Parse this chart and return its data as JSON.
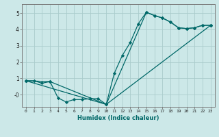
{
  "xlabel": "Humidex (Indice chaleur)",
  "bg_color": "#cce8e8",
  "grid_color": "#aacccc",
  "line_color": "#006868",
  "series": [
    {
      "x": [
        0,
        1,
        2,
        3,
        4,
        5,
        6,
        7,
        8,
        9,
        10,
        11,
        12,
        13,
        14,
        15,
        16,
        17,
        18,
        19,
        20,
        21,
        22,
        23
      ],
      "y": [
        0.85,
        0.85,
        0.7,
        0.8,
        -0.2,
        -0.45,
        -0.3,
        -0.3,
        -0.25,
        -0.25,
        -0.6,
        1.3,
        2.4,
        3.2,
        4.35,
        5.05,
        4.85,
        4.7,
        4.45,
        4.1,
        4.05,
        4.1,
        4.25,
        4.25
      ]
    },
    {
      "x": [
        0,
        3,
        10,
        23
      ],
      "y": [
        0.85,
        0.8,
        -0.6,
        4.25
      ]
    },
    {
      "x": [
        0,
        10,
        15,
        16,
        17,
        18,
        19,
        20,
        21,
        22,
        23
      ],
      "y": [
        0.85,
        -0.6,
        5.05,
        4.85,
        4.7,
        4.45,
        4.1,
        4.05,
        4.1,
        4.25,
        4.25
      ]
    }
  ],
  "xlim": [
    -0.5,
    23.5
  ],
  "ylim": [
    -0.75,
    5.55
  ],
  "yticks": [
    0,
    1,
    2,
    3,
    4,
    5
  ],
  "ytick_labels": [
    "-0",
    "1",
    "2",
    "3",
    "4",
    "5"
  ],
  "xticks": [
    0,
    1,
    2,
    3,
    4,
    5,
    6,
    7,
    8,
    9,
    10,
    11,
    12,
    13,
    14,
    15,
    16,
    17,
    18,
    19,
    20,
    21,
    22,
    23
  ],
  "marker": "D",
  "marker_size": 2.2,
  "linewidth": 0.9
}
